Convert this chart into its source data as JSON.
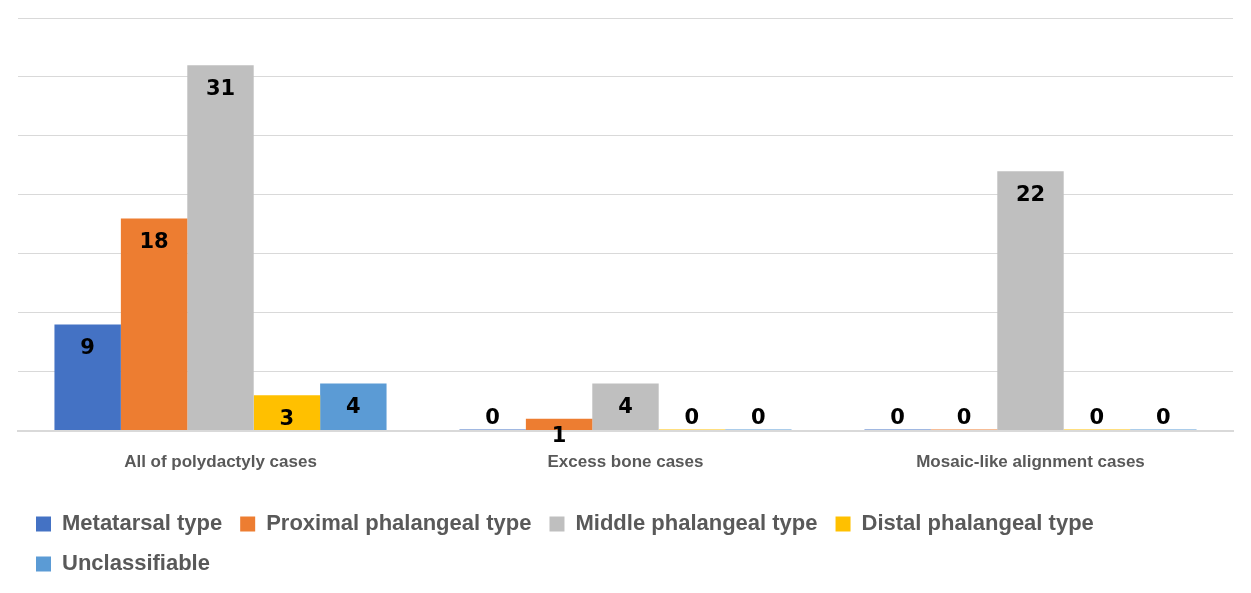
{
  "chart_data": {
    "type": "bar",
    "categories": [
      "All of polydactyly cases",
      "Excess bone cases",
      "Mosaic-like alignment cases"
    ],
    "series": [
      {
        "name": "Metatarsal type",
        "color": "#4472c4",
        "values": [
          9,
          0,
          0
        ]
      },
      {
        "name": "Proximal phalangeal type",
        "color": "#ed7d31",
        "values": [
          18,
          1,
          0
        ]
      },
      {
        "name": "Middle phalangeal type",
        "color": "#bfbfbf",
        "values": [
          31,
          4,
          22
        ]
      },
      {
        "name": "Distal phalangeal type",
        "color": "#ffc000",
        "values": [
          3,
          0,
          0
        ]
      },
      {
        "name": "Unclassifiable",
        "color": "#5b9bd5",
        "values": [
          4,
          0,
          0
        ]
      }
    ],
    "ylim": [
      0,
      35
    ],
    "yticks": [
      {
        "value": 0,
        "label": null
      },
      {
        "value": 5,
        "label": null
      },
      {
        "value": 10,
        "label": null
      },
      {
        "value": 15,
        "label": null
      },
      {
        "value": 20,
        "label": null
      },
      {
        "value": 25,
        "label": null
      },
      {
        "value": 30,
        "label": null
      },
      {
        "value": 35,
        "label": null
      }
    ],
    "tick_labels": "x",
    "grid": "y",
    "legend": "bottom",
    "data_labels": true
  }
}
